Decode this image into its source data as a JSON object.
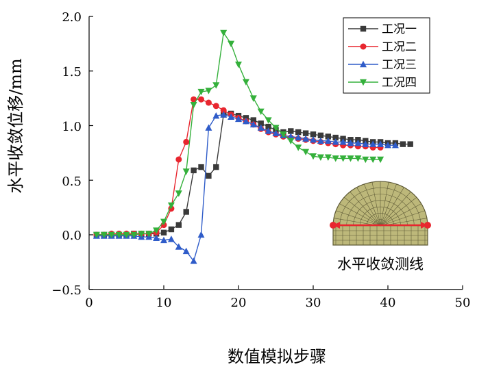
{
  "chart_data": {
    "type": "line",
    "title": "",
    "xlabel": "数值模拟步骤",
    "ylabel": "水平收敛位移/mm",
    "xlim": [
      0,
      50
    ],
    "ylim": [
      -0.5,
      2.0
    ],
    "x_ticks": [
      0,
      10,
      20,
      30,
      40,
      50
    ],
    "y_ticks": [
      -0.5,
      0.0,
      0.5,
      1.0,
      1.5,
      2.0
    ],
    "x_tick_labels": [
      "0",
      "10",
      "20",
      "30",
      "40",
      "50"
    ],
    "y_tick_labels": [
      "−0.5",
      "0.0",
      "0.5",
      "1.0",
      "1.5",
      "2.0"
    ],
    "grid": false,
    "legend_position": "top-right",
    "series": [
      {
        "name": "工况一",
        "color": "#3a3a3a",
        "marker": "square",
        "x": [
          1,
          2,
          3,
          4,
          5,
          6,
          7,
          8,
          9,
          10,
          11,
          12,
          13,
          14,
          15,
          16,
          17,
          18,
          19,
          20,
          21,
          22,
          23,
          24,
          25,
          26,
          27,
          28,
          29,
          30,
          31,
          32,
          33,
          34,
          35,
          36,
          37,
          38,
          39,
          40,
          41,
          42,
          43
        ],
        "y": [
          0.0,
          0.0,
          0.0,
          0.0,
          0.0,
          0.01,
          0.01,
          0.01,
          0.01,
          0.02,
          0.05,
          0.09,
          0.21,
          0.59,
          0.62,
          0.54,
          0.62,
          1.1,
          1.11,
          1.09,
          1.07,
          1.05,
          1.02,
          0.99,
          0.96,
          0.94,
          0.95,
          0.94,
          0.93,
          0.92,
          0.91,
          0.9,
          0.89,
          0.88,
          0.87,
          0.87,
          0.86,
          0.85,
          0.85,
          0.84,
          0.84,
          0.83,
          0.83
        ]
      },
      {
        "name": "工况二",
        "color": "#e8262f",
        "marker": "circle",
        "x": [
          1,
          2,
          3,
          4,
          5,
          6,
          7,
          8,
          9,
          10,
          11,
          12,
          13,
          14,
          15,
          16,
          17,
          18,
          19,
          20,
          21,
          22,
          23,
          24,
          25,
          26,
          27,
          28,
          29,
          30,
          31,
          32,
          33,
          34,
          35,
          36,
          37,
          38,
          39
        ],
        "y": [
          0.0,
          0.0,
          0.01,
          0.01,
          0.01,
          0.01,
          0.01,
          0.01,
          0.02,
          0.09,
          0.24,
          0.69,
          0.85,
          1.24,
          1.24,
          1.21,
          1.18,
          1.14,
          1.1,
          1.07,
          1.04,
          1.01,
          0.97,
          0.94,
          0.92,
          0.9,
          0.89,
          0.88,
          0.87,
          0.86,
          0.85,
          0.84,
          0.83,
          0.82,
          0.82,
          0.81,
          0.81,
          0.8,
          0.8
        ]
      },
      {
        "name": "工况三",
        "color": "#2f5cc9",
        "marker": "triangle-up",
        "x": [
          1,
          2,
          3,
          4,
          5,
          6,
          7,
          8,
          9,
          10,
          11,
          12,
          13,
          14,
          15,
          16,
          17,
          18,
          19,
          20,
          21,
          22,
          23,
          24,
          25,
          26,
          27,
          28,
          29,
          30,
          31,
          32,
          33,
          34,
          35,
          36,
          37,
          38,
          39,
          40,
          41
        ],
        "y": [
          -0.01,
          -0.01,
          -0.01,
          -0.01,
          -0.01,
          -0.01,
          -0.02,
          -0.02,
          -0.03,
          -0.05,
          -0.04,
          -0.11,
          -0.15,
          -0.24,
          0.0,
          0.98,
          1.09,
          1.1,
          1.08,
          1.06,
          1.04,
          1.01,
          0.98,
          0.95,
          0.93,
          0.91,
          0.9,
          0.89,
          0.88,
          0.87,
          0.86,
          0.86,
          0.85,
          0.85,
          0.84,
          0.84,
          0.83,
          0.83,
          0.83,
          0.82,
          0.82
        ]
      },
      {
        "name": "工况四",
        "color": "#34b03b",
        "marker": "triangle-down",
        "x": [
          1,
          2,
          3,
          4,
          5,
          6,
          7,
          8,
          9,
          10,
          11,
          12,
          13,
          14,
          15,
          16,
          17,
          18,
          19,
          20,
          21,
          22,
          23,
          24,
          25,
          26,
          27,
          28,
          29,
          30,
          31,
          32,
          33,
          34,
          35,
          36,
          37,
          38,
          39
        ],
        "y": [
          0.0,
          0.0,
          0.0,
          0.0,
          0.0,
          0.0,
          0.01,
          0.01,
          0.04,
          0.12,
          0.27,
          0.38,
          0.58,
          1.19,
          1.31,
          1.32,
          1.37,
          1.85,
          1.75,
          1.56,
          1.4,
          1.25,
          1.13,
          1.05,
          0.98,
          0.92,
          0.86,
          0.8,
          0.76,
          0.72,
          0.71,
          0.71,
          0.7,
          0.7,
          0.7,
          0.7,
          0.69,
          0.69,
          0.69
        ]
      }
    ],
    "annotations": [
      {
        "text": "水平收敛测线",
        "kind": "inset-diagram-label"
      }
    ]
  },
  "inset": {
    "label": "水平收敛测线",
    "shape_fill": "#bdb87a",
    "mesh_color": "#5e5a36",
    "line_color": "#e8262f"
  }
}
